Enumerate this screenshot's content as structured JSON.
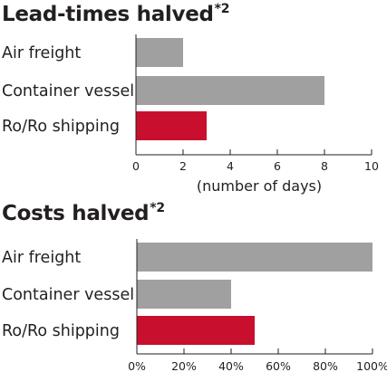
{
  "chart_data": [
    {
      "type": "bar",
      "orientation": "horizontal",
      "title": "Lead-times halved",
      "title_superscript": "*2",
      "categories": [
        "Air freight",
        "Container vessel",
        "Ro/Ro shipping"
      ],
      "values": [
        2,
        8,
        3
      ],
      "bar_colors": [
        "#a0a0a0",
        "#a0a0a0",
        "#c8102e"
      ],
      "xlim": [
        0,
        10
      ],
      "xticks": [
        0,
        2,
        4,
        6,
        8,
        10
      ],
      "xtick_labels": [
        "0",
        "2",
        "4",
        "6",
        "8",
        "10"
      ],
      "xlabel": "(number of days)",
      "grid": false
    },
    {
      "type": "bar",
      "orientation": "horizontal",
      "title": "Costs halved",
      "title_superscript": "*2",
      "categories": [
        "Air freight",
        "Container vessel",
        "Ro/Ro shipping"
      ],
      "values": [
        100,
        40,
        50
      ],
      "bar_colors": [
        "#a0a0a0",
        "#a0a0a0",
        "#c8102e"
      ],
      "xlim": [
        0,
        100
      ],
      "xticks": [
        0,
        20,
        40,
        60,
        80,
        100
      ],
      "xtick_labels": [
        "0%",
        "20%",
        "40%",
        "60%",
        "80%",
        "100%"
      ],
      "xlabel": "",
      "grid": false
    }
  ]
}
